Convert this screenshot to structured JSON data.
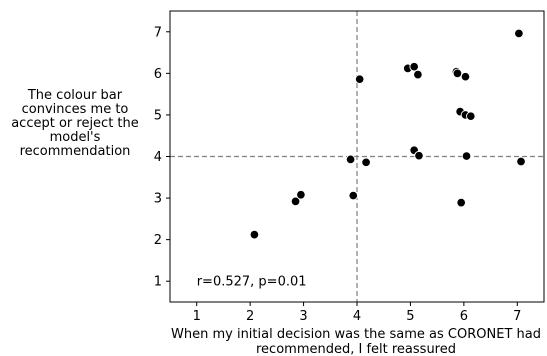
{
  "chart_data": {
    "type": "scatter",
    "title": "",
    "xlabel_lines": [
      "When my initial decision was the same as CORONET had",
      "recommended, I felt reassured"
    ],
    "ylabel_lines": [
      "The colour bar",
      "convinces me to",
      "accept or reject the",
      "model's",
      "recommendation"
    ],
    "xlim": [
      0.5,
      7.5
    ],
    "ylim": [
      0.5,
      7.5
    ],
    "xticks": [
      1,
      2,
      3,
      4,
      5,
      6,
      7
    ],
    "yticks": [
      1,
      2,
      3,
      4,
      5,
      6,
      7
    ],
    "reference_lines": {
      "x": 4,
      "y": 4,
      "style": "dashed",
      "color": "#808080"
    },
    "annotation": "r=0.527, p=0.01",
    "grid": false,
    "points": [
      {
        "x": 2.08,
        "y": 2.12
      },
      {
        "x": 2.85,
        "y": 2.92
      },
      {
        "x": 2.95,
        "y": 3.08
      },
      {
        "x": 3.88,
        "y": 3.93
      },
      {
        "x": 3.93,
        "y": 3.06
      },
      {
        "x": 4.05,
        "y": 5.86
      },
      {
        "x": 4.17,
        "y": 3.86
      },
      {
        "x": 4.95,
        "y": 6.12
      },
      {
        "x": 5.07,
        "y": 6.16
      },
      {
        "x": 5.14,
        "y": 5.97
      },
      {
        "x": 5.07,
        "y": 4.15
      },
      {
        "x": 5.16,
        "y": 4.02
      },
      {
        "x": 5.86,
        "y": 6.04
      },
      {
        "x": 5.88,
        "y": 6.0
      },
      {
        "x": 6.03,
        "y": 5.92
      },
      {
        "x": 5.93,
        "y": 5.08
      },
      {
        "x": 6.03,
        "y": 5.0
      },
      {
        "x": 6.13,
        "y": 4.97
      },
      {
        "x": 6.05,
        "y": 4.01
      },
      {
        "x": 5.95,
        "y": 2.89
      },
      {
        "x": 7.03,
        "y": 6.96
      },
      {
        "x": 7.07,
        "y": 3.88
      }
    ]
  },
  "colors": {
    "marker": "#000000",
    "marker_edge": "#ffffff",
    "axes": "#000000",
    "reference": "#808080"
  }
}
